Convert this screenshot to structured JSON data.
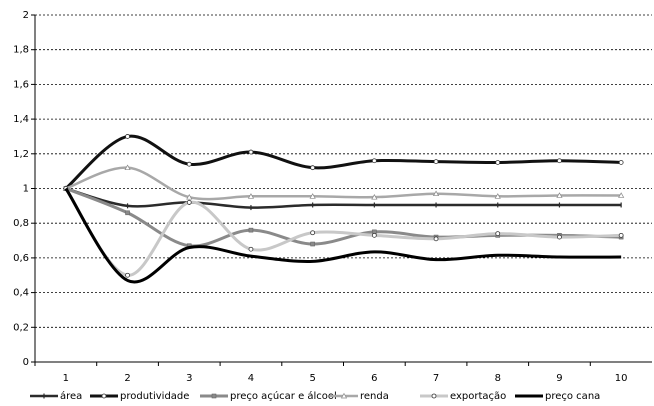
{
  "chart_data": {
    "type": "line",
    "categories": [
      "1",
      "2",
      "3",
      "4",
      "5",
      "6",
      "7",
      "8",
      "9",
      "10"
    ],
    "series": [
      {
        "name": "área",
        "color": "#2b2b2b",
        "marker": "dash",
        "values": [
          1,
          0.9,
          0.92,
          0.89,
          0.905,
          0.905,
          0.905,
          0.905,
          0.905,
          0.905
        ]
      },
      {
        "name": "produtividade",
        "color": "#111111",
        "marker": "circle",
        "values": [
          1,
          1.3,
          1.14,
          1.21,
          1.12,
          1.16,
          1.155,
          1.15,
          1.16,
          1.15
        ]
      },
      {
        "name": "preço açúcar e álcool",
        "color": "#8a8a8a",
        "marker": "square",
        "values": [
          1,
          0.86,
          0.67,
          0.76,
          0.68,
          0.75,
          0.72,
          0.73,
          0.73,
          0.72
        ]
      },
      {
        "name": "renda",
        "color": "#a8a8a8",
        "marker": "triangle",
        "values": [
          1,
          1.12,
          0.95,
          0.955,
          0.955,
          0.95,
          0.97,
          0.955,
          0.96,
          0.96
        ]
      },
      {
        "name": "exportação",
        "color": "#c8c8c8",
        "marker": "circle",
        "values": [
          1,
          0.5,
          0.92,
          0.65,
          0.745,
          0.73,
          0.71,
          0.74,
          0.72,
          0.73
        ]
      },
      {
        "name": "preço cana",
        "color": "#000000",
        "marker": "none",
        "values": [
          1,
          0.47,
          0.66,
          0.61,
          0.58,
          0.635,
          0.59,
          0.615,
          0.605,
          0.605
        ]
      }
    ],
    "ylim": [
      0,
      2
    ],
    "yticks": [
      0,
      {
        "value": 0.2,
        "label": "0,2"
      },
      {
        "value": 0.4,
        "label": "0,4"
      },
      {
        "value": 0.6,
        "label": "0,6"
      },
      {
        "value": 0.8,
        "label": "0,8"
      },
      1,
      {
        "value": 1.2,
        "label": "1,2"
      },
      {
        "value": 1.4,
        "label": "1,4"
      },
      {
        "value": 1.6,
        "label": "1,6"
      },
      {
        "value": 1.8,
        "label": "1,8"
      },
      2
    ],
    "grid": true,
    "smooth": true,
    "legend": "bottom"
  }
}
